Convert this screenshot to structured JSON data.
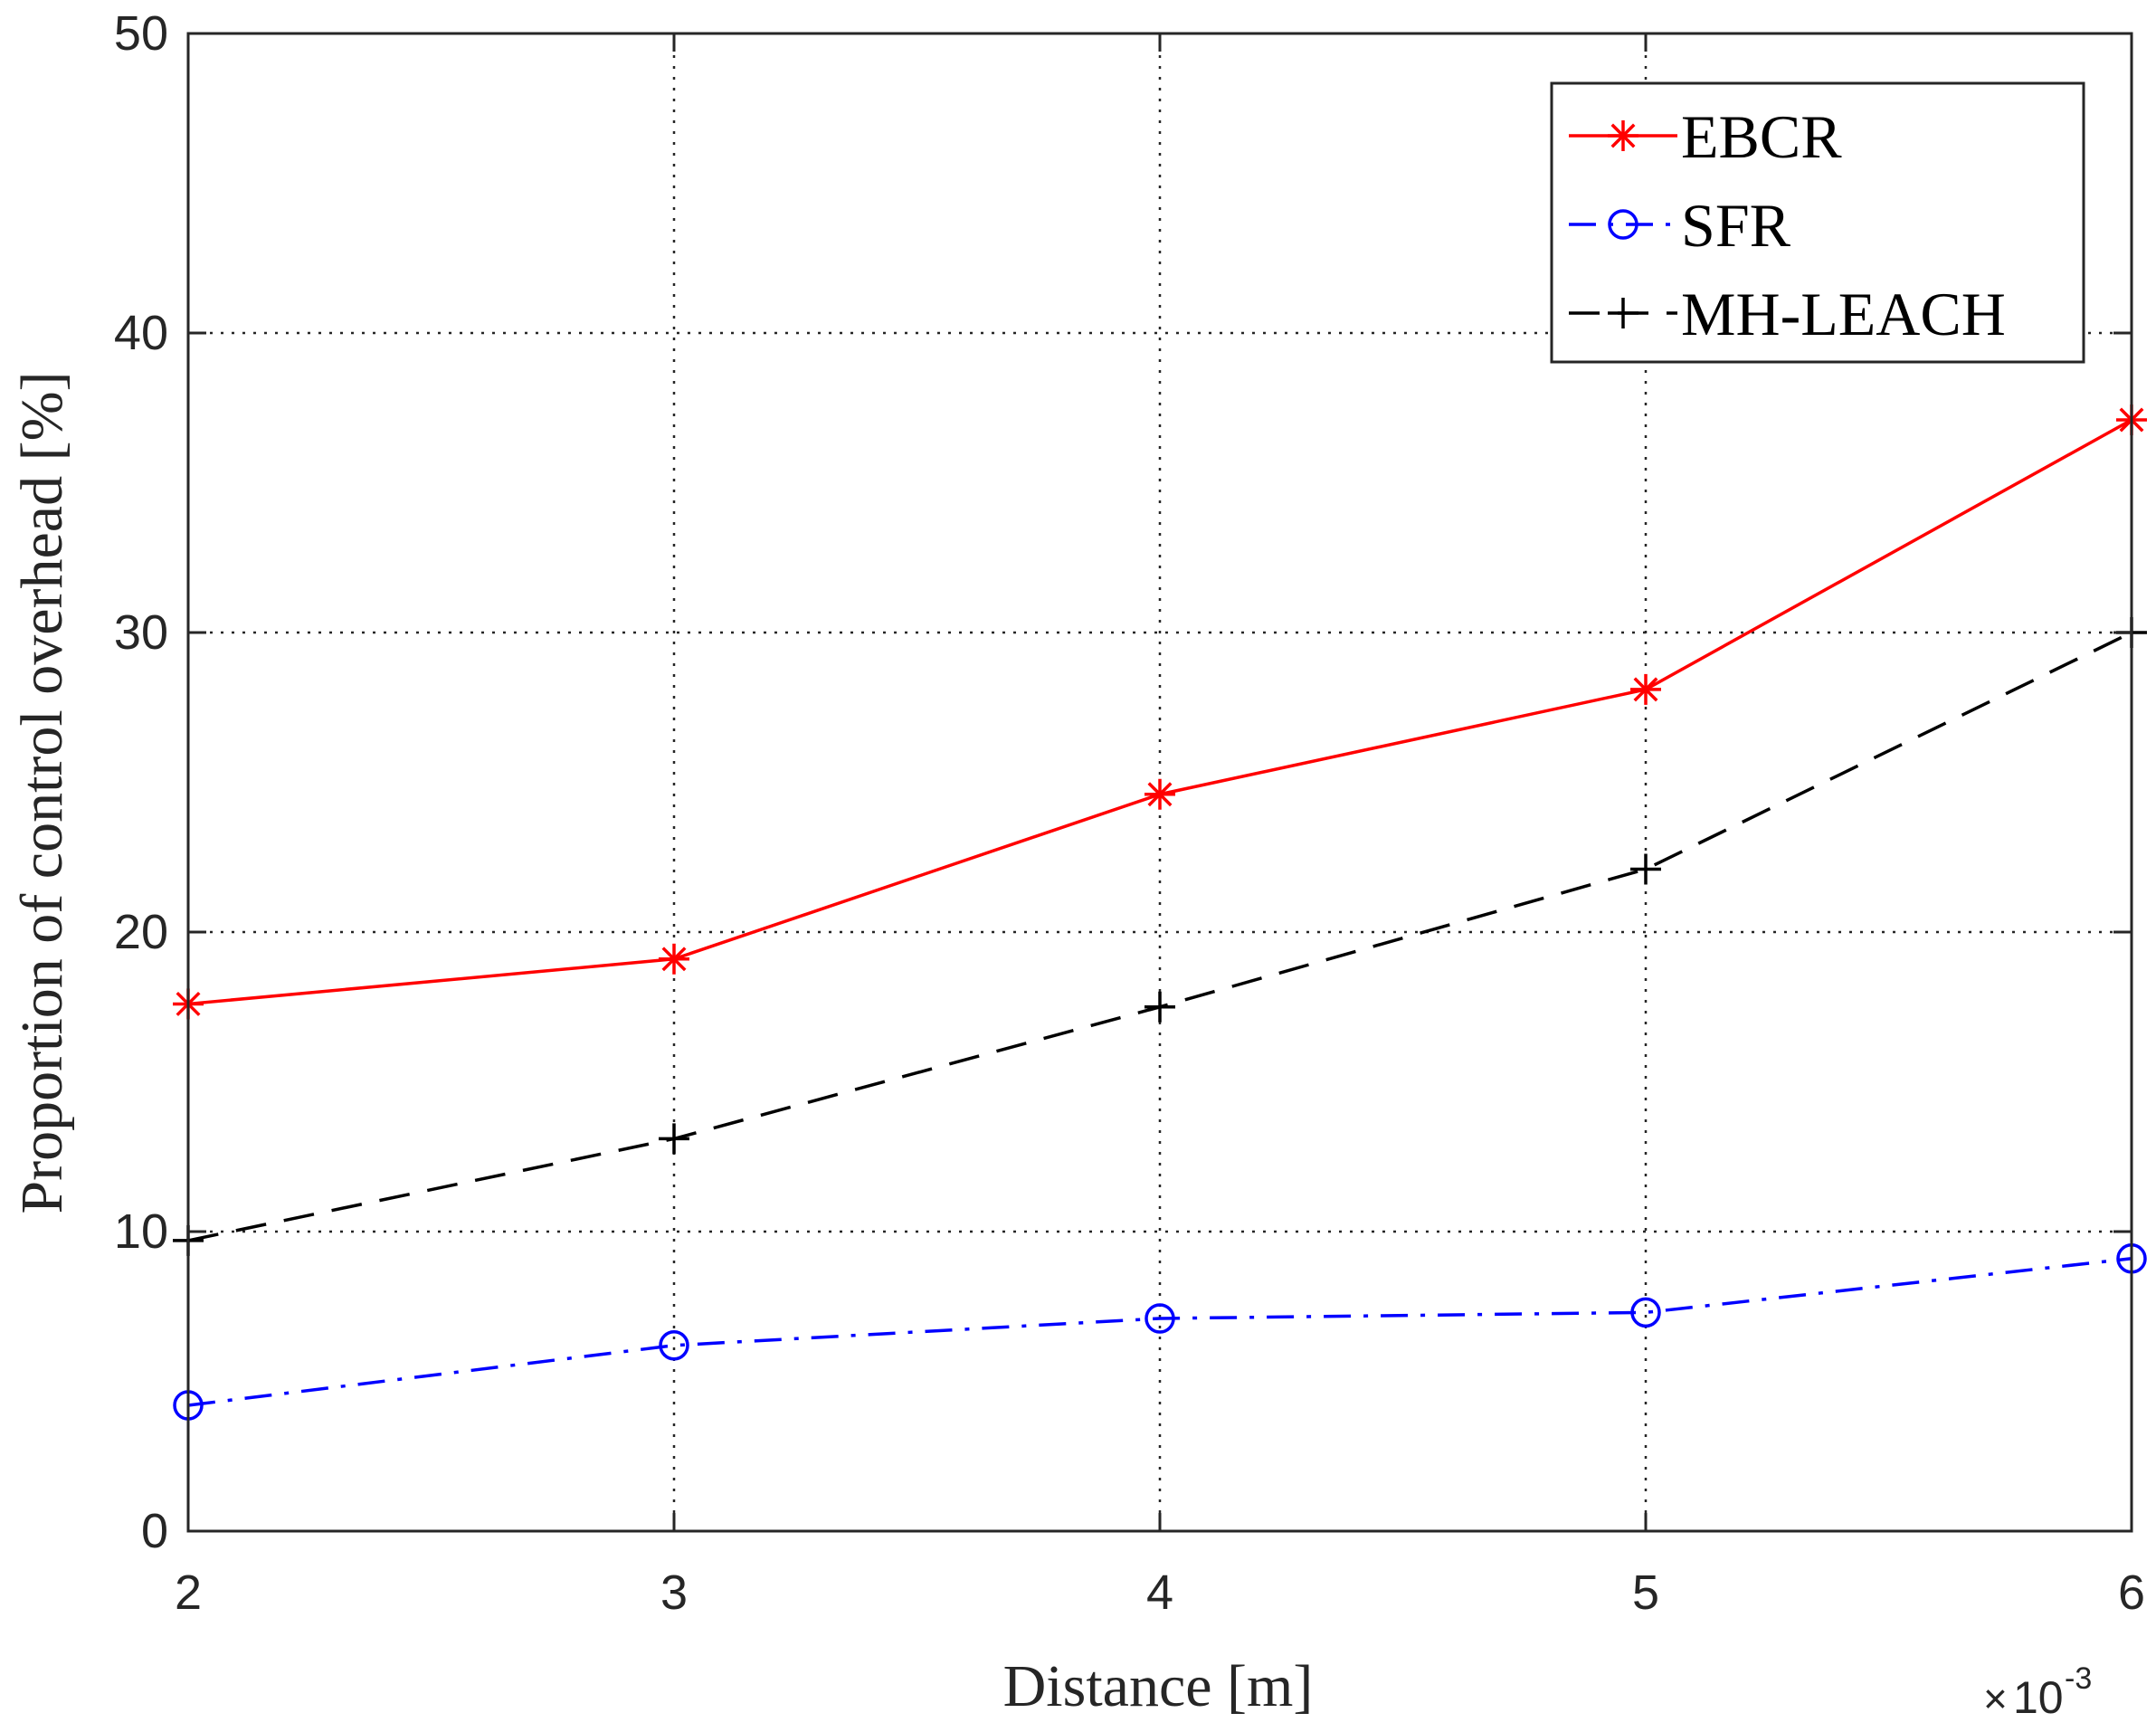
{
  "chart_data": {
    "type": "line",
    "title": "",
    "xlabel": "Distance [m]",
    "ylabel": "Proportion of control overhead [%]",
    "x": [
      2,
      3,
      4,
      5,
      6
    ],
    "x_tick_labels": [
      "2",
      "3",
      "4",
      "5",
      "6"
    ],
    "x_multiplier": {
      "times": "×",
      "base": "10",
      "power": "-3"
    },
    "y_ticks": [
      0,
      10,
      20,
      30,
      40,
      50
    ],
    "y_tick_labels": [
      "0",
      "10",
      "20",
      "30",
      "40",
      "50"
    ],
    "xlim": [
      2,
      6
    ],
    "ylim": [
      0,
      50
    ],
    "grid": true,
    "legend_position": "top-right",
    "series": [
      {
        "name": "EBCR",
        "color": "#ff0000",
        "line_style": "solid",
        "marker": "asterisk",
        "values": [
          17.6,
          19.1,
          24.6,
          28.1,
          37.1
        ]
      },
      {
        "name": "SFR",
        "color": "#0000ff",
        "line_style": "dashdot",
        "marker": "circle",
        "values": [
          4.2,
          6.2,
          7.1,
          7.3,
          9.1
        ]
      },
      {
        "name": "MH-LEACH",
        "color": "#000000",
        "line_style": "dashed",
        "marker": "plus",
        "values": [
          9.7,
          13.1,
          17.5,
          22.1,
          30.0
        ]
      }
    ]
  }
}
